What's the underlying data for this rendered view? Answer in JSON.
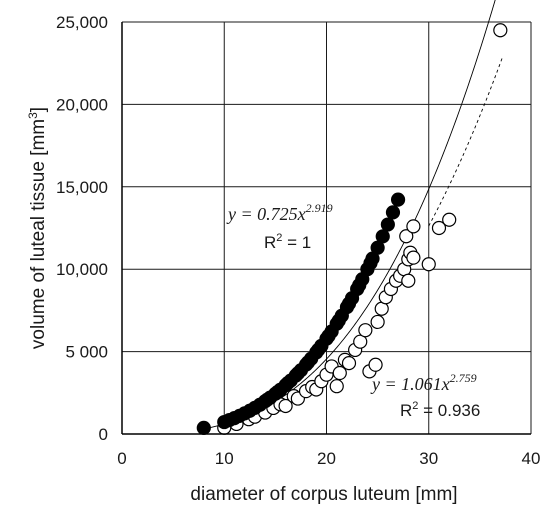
{
  "chart_data": {
    "type": "scatter",
    "xlabel": "diameter of corpus luteum [mm]",
    "ylabel_main": "volume of luteal tissue [mm",
    "ylabel_sup": "3",
    "ylabel_tail": "]",
    "xlim": [
      0,
      40
    ],
    "ylim": [
      0,
      25000
    ],
    "x_ticks": [
      0,
      10,
      20,
      30,
      40
    ],
    "y_ticks": [
      0,
      5000,
      10000,
      15000,
      20000,
      25000
    ],
    "x_tick_labels": [
      "0",
      "10",
      "20",
      "30",
      "40"
    ],
    "y_tick_labels": [
      "0",
      "5 000",
      "10,000",
      "15,000",
      "20,000",
      "25,000"
    ],
    "grid": true,
    "series": [
      {
        "marker": "filled-circle",
        "color": "#000000",
        "points": [
          [
            8,
            370
          ],
          [
            10,
            725
          ],
          [
            11,
            965
          ],
          [
            12,
            1250
          ],
          [
            13,
            1590
          ],
          [
            13.5,
            1780
          ],
          [
            14,
            1990
          ],
          [
            14.5,
            2210
          ],
          [
            15,
            2440
          ],
          [
            15.5,
            2690
          ],
          [
            16,
            2960
          ],
          [
            16.5,
            3240
          ],
          [
            17,
            3550
          ],
          [
            17.5,
            3870
          ],
          [
            18,
            4210
          ],
          [
            18.5,
            4570
          ],
          [
            19,
            4950
          ],
          [
            19.5,
            5350
          ],
          [
            20,
            5780
          ],
          [
            20.5,
            6220
          ],
          [
            21,
            6690
          ],
          [
            21.5,
            7180
          ],
          [
            22,
            7700
          ],
          [
            22.5,
            8240
          ],
          [
            23,
            8800
          ],
          [
            23.5,
            9390
          ],
          [
            24,
            10000
          ],
          [
            24.5,
            10640
          ],
          [
            25,
            11300
          ],
          [
            25.5,
            11990
          ],
          [
            26,
            12710
          ],
          [
            26.5,
            13450
          ],
          [
            27,
            14220
          ],
          [
            24.3,
            10370
          ],
          [
            23.2,
            9030
          ],
          [
            22.2,
            7910
          ],
          [
            21.2,
            6880
          ],
          [
            20.2,
            5950
          ],
          [
            19.2,
            5110
          ],
          [
            18.2,
            4350
          ],
          [
            17.2,
            3680
          ],
          [
            16.2,
            3080
          ],
          [
            15.2,
            2540
          ],
          [
            14.2,
            2080
          ],
          [
            12.5,
            1410
          ],
          [
            11.5,
            1100
          ],
          [
            10.5,
            840
          ]
        ]
      },
      {
        "marker": "open-circle",
        "color": "#000000",
        "points": [
          [
            10,
            380
          ],
          [
            11.2,
            610
          ],
          [
            12.4,
            900
          ],
          [
            13,
            1050
          ],
          [
            14,
            1300
          ],
          [
            14.8,
            1580
          ],
          [
            15.5,
            1800
          ],
          [
            16,
            1700
          ],
          [
            16.8,
            2300
          ],
          [
            17.2,
            2150
          ],
          [
            18,
            2600
          ],
          [
            18.6,
            2850
          ],
          [
            19,
            2700
          ],
          [
            19.5,
            3200
          ],
          [
            20,
            3600
          ],
          [
            20.5,
            4100
          ],
          [
            21,
            2900
          ],
          [
            21.3,
            3700
          ],
          [
            21.8,
            4500
          ],
          [
            22.2,
            4300
          ],
          [
            22.8,
            5100
          ],
          [
            23.3,
            5600
          ],
          [
            23.8,
            6300
          ],
          [
            24.2,
            3800
          ],
          [
            24.8,
            4200
          ],
          [
            25,
            6800
          ],
          [
            25.4,
            7600
          ],
          [
            25.8,
            8300
          ],
          [
            26.3,
            8800
          ],
          [
            26.8,
            9300
          ],
          [
            27.2,
            9600
          ],
          [
            27.6,
            10000
          ],
          [
            28,
            9300
          ],
          [
            28,
            10600
          ],
          [
            28.2,
            11000
          ],
          [
            28.5,
            10700
          ],
          [
            27.8,
            12000
          ],
          [
            28.5,
            12600
          ],
          [
            30,
            10300
          ],
          [
            31,
            12500
          ],
          [
            32,
            13000
          ],
          [
            37,
            24500
          ]
        ]
      }
    ],
    "fits": [
      {
        "style": "solid",
        "a": 0.725,
        "b": 2.919,
        "x_range": [
          8,
          36.8
        ],
        "equation_prefix": "y = ",
        "equation_coef": "0.725x",
        "equation_exp": "2.919",
        "r2_label": "R",
        "r2_sup": "2",
        "r2_value": " = 1"
      },
      {
        "style": "dashed",
        "a": 1.061,
        "b": 2.759,
        "x_range": [
          30,
          37.2
        ],
        "equation_prefix": "y = ",
        "equation_coef": "1.061x",
        "equation_exp": "2.759",
        "r2_label": "R",
        "r2_sup": "2",
        "r2_value": " = 0.936"
      }
    ]
  }
}
